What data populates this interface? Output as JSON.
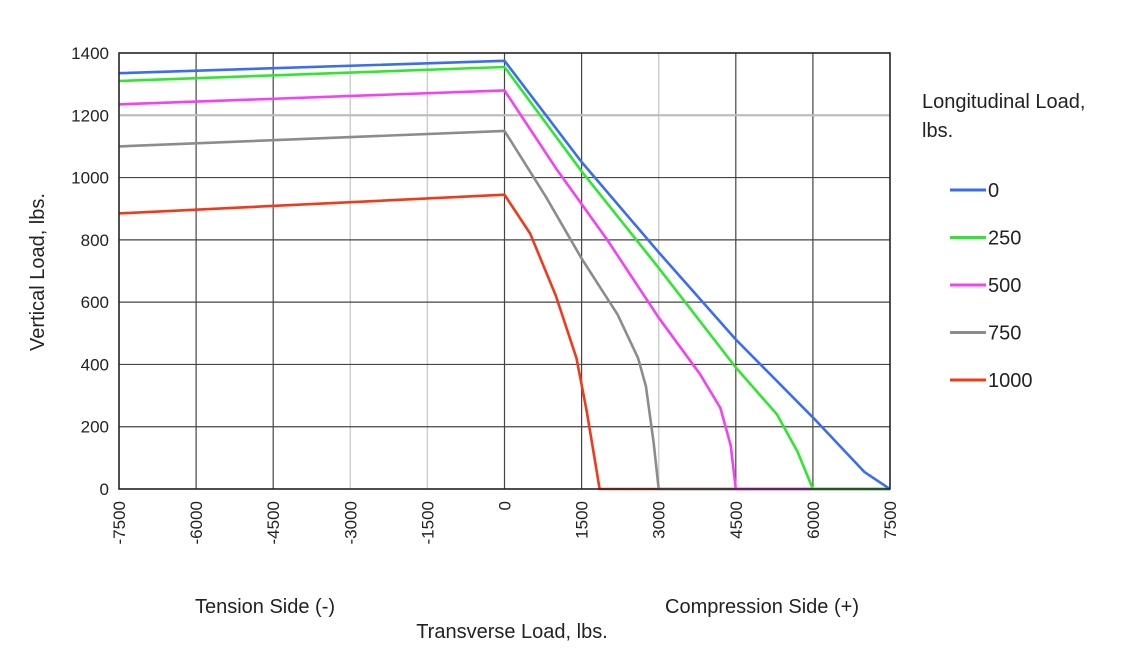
{
  "chart_data": {
    "type": "line",
    "title": "",
    "xlabel": "Transverse Load, lbs.",
    "ylabel": "Vertical Load, lbs.",
    "x_side_labels": {
      "left": "Tension Side (-)",
      "right": "Compression Side (+)"
    },
    "xlim": [
      -7500,
      7500
    ],
    "ylim": [
      0,
      1400
    ],
    "x_ticks": [
      -7500,
      -6000,
      -4500,
      -3000,
      -1500,
      0,
      1500,
      3000,
      4500,
      6000,
      7500
    ],
    "x_tick_labels": [
      "-7500",
      "-6000",
      "-4500",
      "-3000",
      "-1500",
      "0",
      "1500",
      "3000",
      "4500",
      "6000",
      "7500"
    ],
    "y_ticks": [
      0,
      200,
      400,
      600,
      800,
      1000,
      1200,
      1400
    ],
    "y_tick_labels": [
      "0",
      "200",
      "400",
      "600",
      "800",
      "1000",
      "1200",
      "1400"
    ],
    "grid": true,
    "legend": {
      "title_line1": "Longitudinal Load,",
      "title_line2": "lbs.",
      "placement": "right"
    },
    "series": [
      {
        "name": "0",
        "color": "#3a6cf4",
        "points": [
          [
            -7500,
            1335
          ],
          [
            0,
            1375
          ],
          [
            1500,
            1050
          ],
          [
            3000,
            760
          ],
          [
            4500,
            480
          ],
          [
            6000,
            230
          ],
          [
            7000,
            55
          ],
          [
            7500,
            0
          ]
        ]
      },
      {
        "name": "250",
        "color": "#2ee82e",
        "points": [
          [
            -7500,
            1310
          ],
          [
            0,
            1355
          ],
          [
            1500,
            1020
          ],
          [
            3000,
            710
          ],
          [
            4500,
            390
          ],
          [
            5300,
            240
          ],
          [
            5700,
            120
          ],
          [
            6000,
            0
          ],
          [
            7500,
            0
          ]
        ]
      },
      {
        "name": "500",
        "color": "#f540f5",
        "points": [
          [
            -7500,
            1235
          ],
          [
            0,
            1280
          ],
          [
            1000,
            1030
          ],
          [
            2000,
            800
          ],
          [
            3000,
            550
          ],
          [
            3800,
            370
          ],
          [
            4200,
            260
          ],
          [
            4400,
            140
          ],
          [
            4500,
            0
          ],
          [
            7500,
            0
          ]
        ]
      },
      {
        "name": "750",
        "color": "#8c8c8c",
        "points": [
          [
            -7500,
            1100
          ],
          [
            0,
            1150
          ],
          [
            800,
            940
          ],
          [
            1500,
            740
          ],
          [
            2200,
            560
          ],
          [
            2600,
            420
          ],
          [
            2750,
            330
          ],
          [
            2900,
            150
          ],
          [
            3000,
            0
          ],
          [
            7500,
            0
          ]
        ]
      },
      {
        "name": "1000",
        "color": "#f03a1a",
        "points": [
          [
            -7500,
            885
          ],
          [
            0,
            945
          ],
          [
            500,
            820
          ],
          [
            1000,
            620
          ],
          [
            1400,
            420
          ],
          [
            1600,
            250
          ],
          [
            1750,
            100
          ],
          [
            1850,
            0
          ],
          [
            7500,
            0
          ]
        ]
      }
    ]
  }
}
